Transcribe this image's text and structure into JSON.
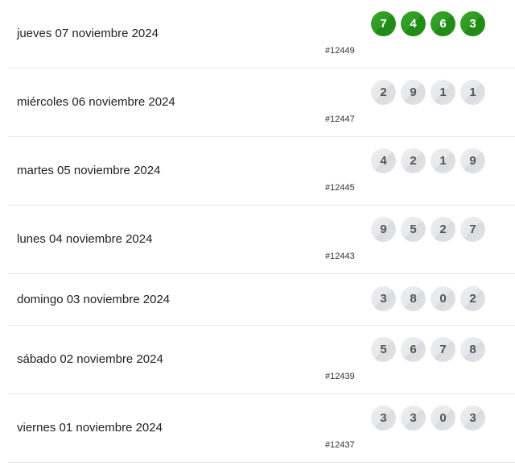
{
  "results": [
    {
      "date": "jueves 07 noviembre 2024",
      "numbers": [
        "7",
        "4",
        "6",
        "3"
      ],
      "id": "#12449",
      "highlight": true
    },
    {
      "date": "miércoles 06 noviembre 2024",
      "numbers": [
        "2",
        "9",
        "1",
        "1"
      ],
      "id": "#12447",
      "highlight": false
    },
    {
      "date": "martes 05 noviembre 2024",
      "numbers": [
        "4",
        "2",
        "1",
        "9"
      ],
      "id": "#12445",
      "highlight": false
    },
    {
      "date": "lunes 04 noviembre 2024",
      "numbers": [
        "9",
        "5",
        "2",
        "7"
      ],
      "id": "#12443",
      "highlight": false
    },
    {
      "date": "domingo 03 noviembre 2024",
      "numbers": [
        "3",
        "8",
        "0",
        "2"
      ],
      "id": "",
      "highlight": false
    },
    {
      "date": "sábado 02 noviembre 2024",
      "numbers": [
        "5",
        "6",
        "7",
        "8"
      ],
      "id": "#12439",
      "highlight": false
    },
    {
      "date": "viernes 01 noviembre 2024",
      "numbers": [
        "3",
        "3",
        "0",
        "3"
      ],
      "id": "#12437",
      "highlight": false
    }
  ],
  "colors": {
    "highlight_ball": "#2e9a22",
    "default_ball": "#e6e8ea"
  }
}
